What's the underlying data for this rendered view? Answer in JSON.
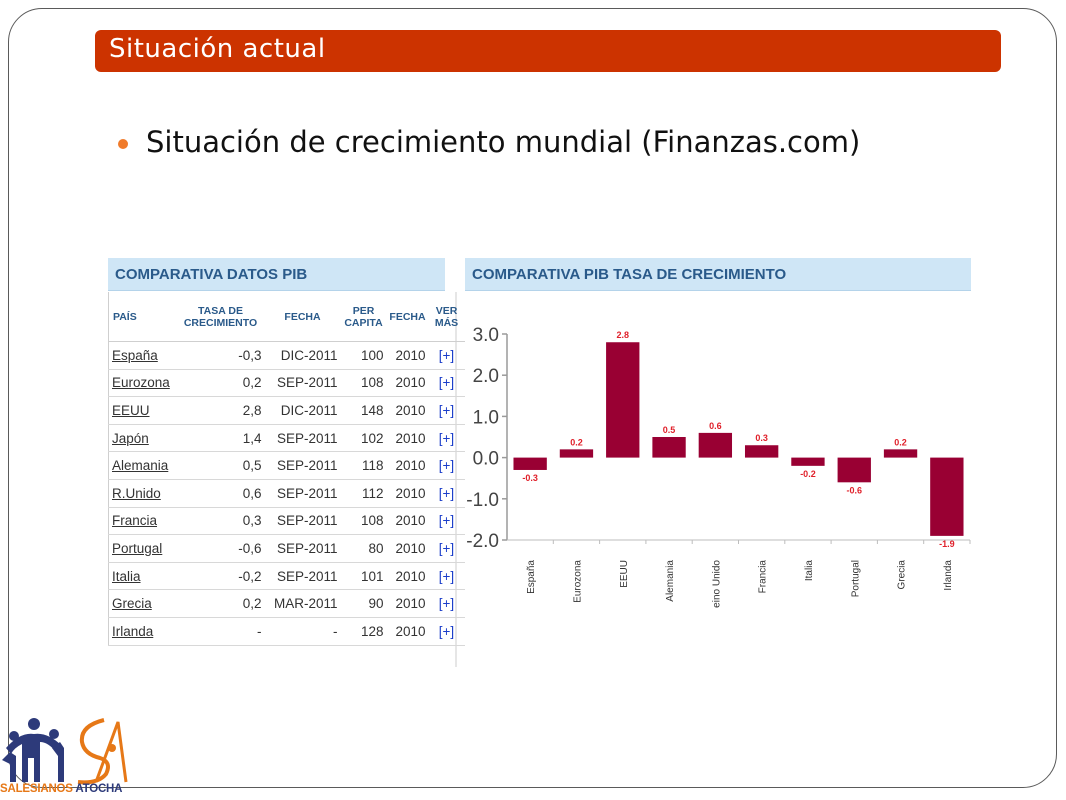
{
  "slide": {
    "title": "Situación actual",
    "bullet": "Situación de crecimiento mundial (Finanzas.com)"
  },
  "table_panel": {
    "title": "COMPARATIVA DATOS PIB",
    "headers": [
      "PAÍS",
      "TASA DE CRECIMIENTO",
      "FECHA",
      "PER CAPITA",
      "FECHA",
      "VER MÁS"
    ],
    "rows": [
      {
        "country": "España",
        "rate": "-0,3",
        "date": "DIC-2011",
        "per_capita": "100",
        "year": "2010",
        "more": "[+]"
      },
      {
        "country": "Eurozona",
        "rate": "0,2",
        "date": "SEP-2011",
        "per_capita": "108",
        "year": "2010",
        "more": "[+]"
      },
      {
        "country": "EEUU",
        "rate": "2,8",
        "date": "DIC-2011",
        "per_capita": "148",
        "year": "2010",
        "more": "[+]"
      },
      {
        "country": "Japón",
        "rate": "1,4",
        "date": "SEP-2011",
        "per_capita": "102",
        "year": "2010",
        "more": "[+]"
      },
      {
        "country": "Alemania",
        "rate": "0,5",
        "date": "SEP-2011",
        "per_capita": "118",
        "year": "2010",
        "more": "[+]"
      },
      {
        "country": "R.Unido",
        "rate": "0,6",
        "date": "SEP-2011",
        "per_capita": "112",
        "year": "2010",
        "more": "[+]"
      },
      {
        "country": "Francia",
        "rate": "0,3",
        "date": "SEP-2011",
        "per_capita": "108",
        "year": "2010",
        "more": "[+]"
      },
      {
        "country": "Portugal",
        "rate": "-0,6",
        "date": "SEP-2011",
        "per_capita": "80",
        "year": "2010",
        "more": "[+]"
      },
      {
        "country": "Italia",
        "rate": "-0,2",
        "date": "SEP-2011",
        "per_capita": "101",
        "year": "2010",
        "more": "[+]"
      },
      {
        "country": "Grecia",
        "rate": "0,2",
        "date": "MAR-2011",
        "per_capita": "90",
        "year": "2010",
        "more": "[+]"
      },
      {
        "country": "Irlanda",
        "rate": "-",
        "date": "-",
        "per_capita": "128",
        "year": "2010",
        "more": "[+]"
      }
    ]
  },
  "chart_panel": {
    "title": "COMPARATIVA PIB TASA DE CRECIMIENTO"
  },
  "chart_data": {
    "type": "bar",
    "categories": [
      "España",
      "Eurozona",
      "EEUU",
      "Alemania",
      "eino Unido",
      "Francia",
      "Italia",
      "Portugal",
      "Grecia",
      "Irlanda"
    ],
    "values": [
      -0.3,
      0.2,
      2.8,
      0.5,
      0.6,
      0.3,
      -0.2,
      -0.6,
      0.2,
      -1.9
    ],
    "value_labels": [
      "-0.3",
      "0.2",
      "2.8",
      "0.5",
      "0.6",
      "0.3",
      "-0.2",
      "-0.6",
      "0.2",
      "-1.9"
    ],
    "yticks": [
      "3.0",
      "2.0",
      "1.0",
      "0.0",
      "-1.0",
      "-2.0"
    ],
    "ylim": [
      -2.0,
      3.0
    ],
    "bar_color": "#990033",
    "label_color": "#e0202a",
    "title": "",
    "xlabel": "",
    "ylabel": ""
  },
  "logo": {
    "text_orange": "SALESIANOS",
    "text_dark": "ATOCHA"
  },
  "colors": {
    "title_bar": "#cc3300",
    "bullet": "#f07b2b",
    "panel_header_bg": "#cfe6f6",
    "panel_header_text": "#2a5a8a",
    "link_plus": "#1a3dc9"
  }
}
